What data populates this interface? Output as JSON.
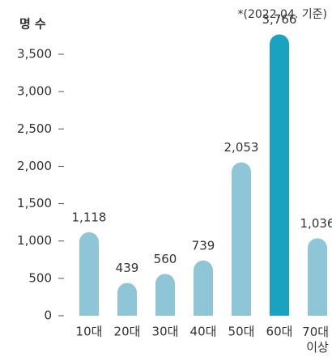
{
  "chart_data": {
    "type": "bar",
    "y_label": "명 수",
    "note": "*(2022.04. 기준)",
    "categories": [
      "10대",
      "20대",
      "30대",
      "40대",
      "50대",
      "60대",
      "70대 이상"
    ],
    "values": [
      1118,
      439,
      560,
      739,
      2053,
      3766,
      1036
    ],
    "value_labels": [
      "1,118",
      "439",
      "560",
      "739",
      "2,053",
      "3,766",
      "1,036"
    ],
    "colors": [
      "#8ec6d8",
      "#8ec6d8",
      "#8ec6d8",
      "#8ec6d8",
      "#8ec6d8",
      "#1aa3c1",
      "#8ec6d8"
    ],
    "ylim": [
      0,
      3500
    ],
    "yticks": [
      0,
      {
        "value": 500,
        "label": "500"
      },
      {
        "value": 1000,
        "label": "1,000"
      },
      {
        "value": 1500,
        "label": "1,500"
      },
      {
        "value": 2000,
        "label": "2,000"
      },
      {
        "value": 2500,
        "label": "2,500"
      },
      {
        "value": 3000,
        "label": "3,000"
      },
      {
        "value": 3500,
        "label": "3,500"
      }
    ]
  }
}
